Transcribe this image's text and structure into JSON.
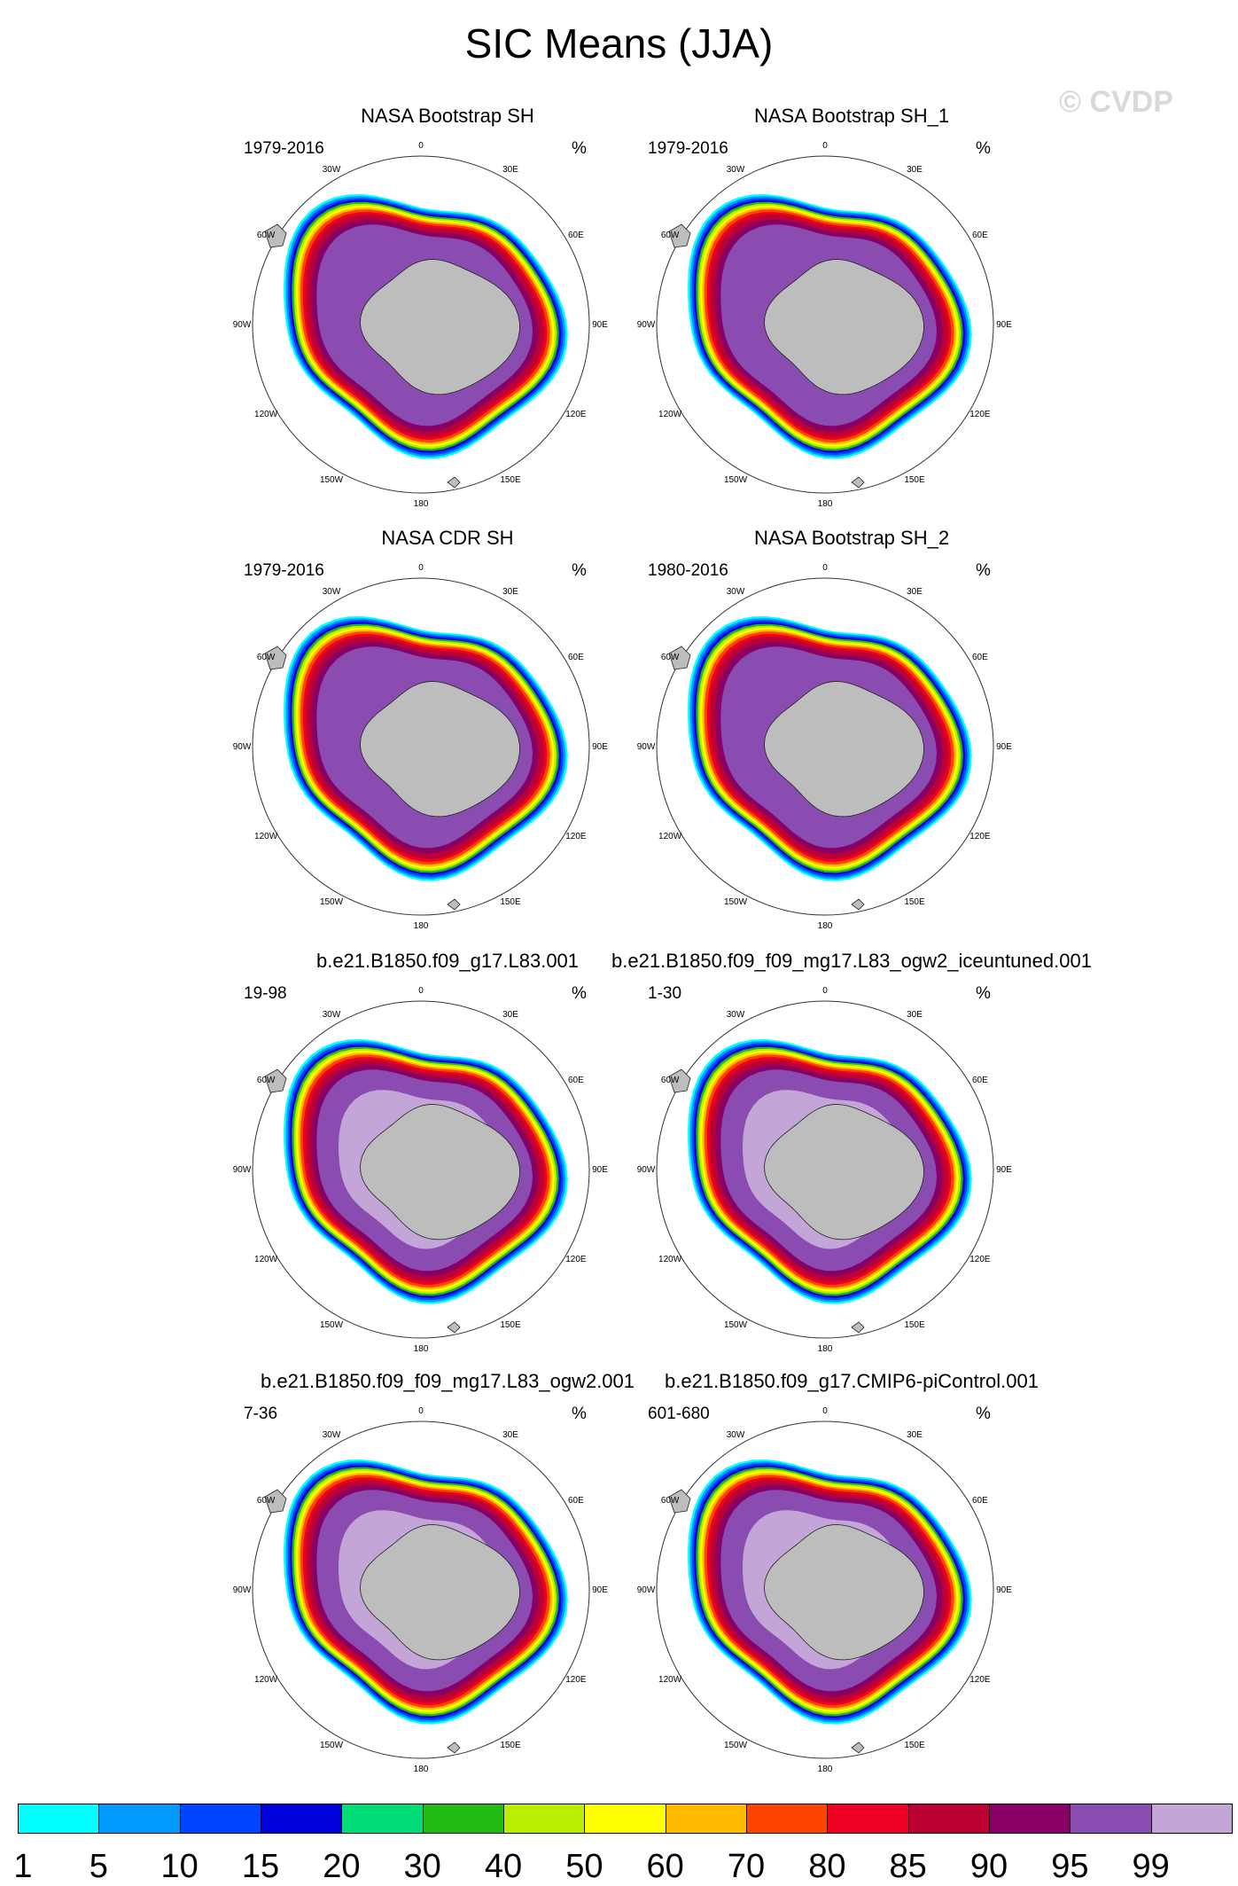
{
  "title": "SIC Means (JJA)",
  "watermark": "© CVDP",
  "units": "%",
  "lon_labels": [
    "0",
    "30E",
    "60E",
    "90E",
    "120E",
    "150E",
    "180",
    "150W",
    "120W",
    "90W",
    "60W",
    "30W"
  ],
  "panels": [
    {
      "name": "NASA Bootstrap SH",
      "period": "1979-2016",
      "kind": "obs"
    },
    {
      "name": "NASA Bootstrap SH_1",
      "period": "1979-2016",
      "kind": "obs"
    },
    {
      "name": "NASA CDR SH",
      "period": "1979-2016",
      "kind": "obs"
    },
    {
      "name": "NASA Bootstrap SH_2",
      "period": "1980-2016",
      "kind": "obs"
    },
    {
      "name": "b.e21.B1850.f09_g17.L83.001",
      "period": "19-98",
      "kind": "model"
    },
    {
      "name": "b.e21.B1850.f09_f09_mg17.L83_ogw2_iceuntuned.001",
      "period": "1-30",
      "kind": "model"
    },
    {
      "name": "b.e21.B1850.f09_f09_mg17.L83_ogw2.001",
      "period": "7-36",
      "kind": "model"
    },
    {
      "name": "b.e21.B1850.f09_g17.CMIP6-piControl.001",
      "period": "601-680",
      "kind": "model"
    }
  ],
  "colorbar": {
    "labels": [
      "1",
      "5",
      "10",
      "15",
      "20",
      "30",
      "40",
      "50",
      "60",
      "70",
      "80",
      "85",
      "90",
      "95",
      "99"
    ],
    "colors": [
      "#00ffff",
      "#0099ff",
      "#0044ff",
      "#0000dd",
      "#00dd77",
      "#22bb11",
      "#bbee00",
      "#ffff00",
      "#ffbb00",
      "#ff4400",
      "#ee0022",
      "#bb0033",
      "#880066",
      "#8a4cb0",
      "#c3a5d8"
    ]
  }
}
